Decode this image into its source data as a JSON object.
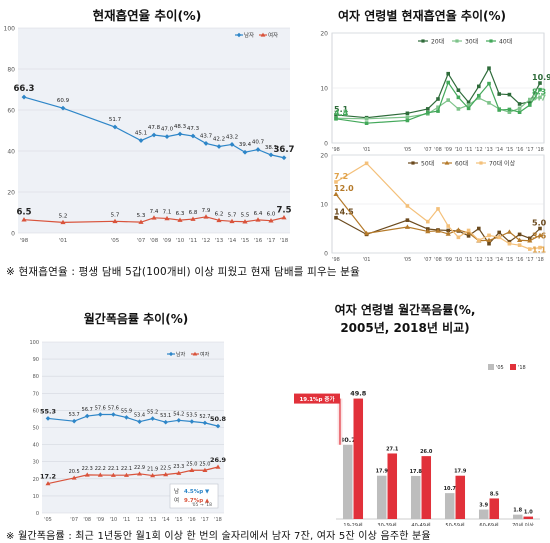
{
  "chart_data": [
    {
      "id": "p1",
      "type": "line",
      "title": "현재흡연율 추이(%)",
      "x": [
        "'98",
        "'01",
        "'05",
        "'07",
        "'08",
        "'09",
        "'10",
        "'11",
        "'12",
        "'13",
        "'14",
        "'15",
        "'16",
        "'17",
        "'18"
      ],
      "xticks": [
        "'98",
        "'01",
        "'05",
        "'07",
        "'08",
        "'09",
        "'10",
        "'11",
        "'12",
        "'13",
        "'14",
        "'15",
        "'16",
        "'17",
        "'18"
      ],
      "ylim": [
        0,
        100
      ],
      "yticks": [
        "0",
        "20",
        "40",
        "60",
        "80",
        "100"
      ],
      "series": [
        {
          "name": "남자",
          "color": "#2e86c8",
          "values": [
            66.3,
            60.9,
            51.7,
            45.1,
            47.8,
            47.0,
            48.3,
            47.3,
            43.7,
            42.2,
            43.2,
            39.4,
            40.7,
            38.1,
            36.7
          ]
        },
        {
          "name": "여자",
          "color": "#d9533b",
          "values": [
            6.5,
            5.2,
            5.7,
            5.3,
            7.4,
            7.1,
            6.3,
            6.8,
            7.9,
            6.2,
            5.7,
            5.5,
            6.4,
            6.0,
            7.5
          ]
        }
      ],
      "labels": [
        [
          "66.3",
          "60.9",
          "51.7",
          "45.1",
          "47.8",
          "47.0",
          "48.3",
          "47.3",
          "43.7",
          "42.2",
          "43.2",
          "39.4",
          "40.7",
          "38.1",
          "36.7"
        ],
        [
          "6.5",
          "5.2",
          "5.7",
          "5.3",
          "7.4",
          "7.1",
          "6.3",
          "6.8",
          "7.9",
          "6.2",
          "5.7",
          "5.5",
          "6.4",
          "6.0",
          "7.5"
        ]
      ]
    },
    {
      "id": "p2",
      "type": "line",
      "title": "여자 연령별 현재흡연율 추이(%)",
      "x": [
        "'98",
        "'01",
        "'05",
        "'07",
        "'08",
        "'09",
        "'10",
        "'11",
        "'12",
        "'13",
        "'14",
        "'15",
        "'16",
        "'17",
        "'18"
      ],
      "xticks": [
        "'98",
        "'01",
        "'05",
        "'07",
        "'08",
        "'09",
        "'10",
        "'11",
        "'12",
        "'13",
        "'14",
        "'15",
        "'16",
        "'17",
        "'18"
      ],
      "panels": [
        {
          "ylim": [
            0,
            20
          ],
          "yticks": [
            "0",
            "10",
            "20"
          ],
          "series": [
            {
              "name": "20대",
              "color": "#2e6b3a",
              "values": [
                5.1,
                4.6,
                5.4,
                6.2,
                8.0,
                12.6,
                9.6,
                7.4,
                10.3,
                13.6,
                8.9,
                8.8,
                7.1,
                7.5,
                10.9
              ]
            },
            {
              "name": "30대",
              "color": "#7ec38a",
              "values": [
                4.5,
                4.4,
                4.7,
                5.3,
                6.5,
                7.8,
                6.2,
                6.9,
                8.2,
                7.3,
                6.2,
                5.6,
                6.3,
                7.9,
                8.3
              ]
            },
            {
              "name": "40대",
              "color": "#43a85a",
              "values": [
                4.4,
                3.6,
                4.1,
                5.5,
                5.8,
                11.0,
                8.3,
                6.3,
                8.6,
                10.8,
                6.0,
                6.1,
                5.6,
                6.9,
                9.7
              ]
            }
          ],
          "value_labels": [
            "5.1",
            "4.5",
            "4.4",
            "10.9",
            "9.7",
            "8.3"
          ]
        },
        {
          "ylim": [
            0,
            20
          ],
          "yticks": [
            "0",
            "10",
            "20"
          ],
          "series": [
            {
              "name": "50대",
              "color": "#6b4a1e",
              "values": [
                7.2,
                3.8,
                6.7,
                4.9,
                4.7,
                4.6,
                4.5,
                3.5,
                5.0,
                1.9,
                4.2,
                2.3,
                3.8,
                3.0,
                5.0
              ]
            },
            {
              "name": "60대",
              "color": "#b57a2a",
              "values": [
                12.0,
                4.0,
                5.3,
                4.4,
                4.5,
                3.9,
                4.7,
                4.1,
                2.5,
                2.6,
                3.3,
                4.3,
                2.6,
                2.5,
                3.6
              ]
            },
            {
              "name": "70대 이상",
              "color": "#f4c07a",
              "values": [
                14.5,
                18.3,
                9.6,
                6.4,
                9.0,
                5.5,
                3.2,
                4.6,
                2.6,
                3.6,
                3.2,
                1.9,
                1.6,
                0.8,
                1.1
              ]
            }
          ],
          "value_labels": [
            "14.5",
            "12.0",
            "7.2",
            "5.0",
            "3.6",
            "1.1"
          ]
        }
      ]
    },
    {
      "id": "p3",
      "type": "line",
      "title": "월간폭음률 추이(%)",
      "x": [
        "'05",
        "'07",
        "'08",
        "'09",
        "'10",
        "'11",
        "'12",
        "'13",
        "'14",
        "'15",
        "'16",
        "'17",
        "'18"
      ],
      "xticks": [
        "'05",
        "'07",
        "'08",
        "'09",
        "'10",
        "'11",
        "'12",
        "'13",
        "'14",
        "'15",
        "'16",
        "'17",
        "'18"
      ],
      "ylim": [
        0,
        100
      ],
      "yticks": [
        "0",
        "10",
        "20",
        "30",
        "40",
        "50",
        "60",
        "70",
        "80",
        "90",
        "100"
      ],
      "series": [
        {
          "name": "남자",
          "color": "#2e86c8",
          "values": [
            55.3,
            53.7,
            56.7,
            57.6,
            57.6,
            55.9,
            53.4,
            55.2,
            53.1,
            54.2,
            53.5,
            52.7,
            50.8
          ]
        },
        {
          "name": "여자",
          "color": "#d9533b",
          "values": [
            17.2,
            20.5,
            22.3,
            22.2,
            22.1,
            22.1,
            22.9,
            21.9,
            22.5,
            23.3,
            25.0,
            25.0,
            26.9
          ]
        }
      ],
      "labels": [
        [
          "55.3",
          "53.7",
          "56.7",
          "57.6",
          "57.6",
          "55.9",
          "53.4",
          "55.2",
          "53.1",
          "54.2",
          "53.5",
          "52.7",
          "50.8"
        ],
        [
          "17.2",
          "20.5",
          "22.3",
          "22.2",
          "22.1",
          "22.1",
          "22.9",
          "21.9",
          "22.5",
          "23.3",
          "25.0",
          "25.0",
          "26.9"
        ]
      ],
      "annotation": {
        "period": "'05 → '18",
        "rows": [
          {
            "label": "남",
            "value": "4.5%p",
            "arrow": "▼",
            "color": "#2e86c8"
          },
          {
            "label": "여",
            "value": "9.7%p",
            "arrow": "▲",
            "color": "#d9533b"
          }
        ]
      }
    },
    {
      "id": "p4",
      "type": "bar",
      "title": "여자 연령별 월간폭음률(%,",
      "subtitle": "2005년, 2018년 비교)",
      "categories": [
        "19-29세",
        "30-39세",
        "40-49세",
        "50-59세",
        "60-69세",
        "70세 이상"
      ],
      "series": [
        {
          "name": "'05",
          "color": "#bdbdbd",
          "values": [
            30.7,
            17.9,
            17.8,
            10.7,
            3.9,
            1.8
          ]
        },
        {
          "name": "'18",
          "color": "#e1313a",
          "values": [
            49.8,
            27.1,
            26.0,
            17.9,
            8.5,
            1.0
          ]
        }
      ],
      "ylim": [
        0,
        55
      ],
      "annotation": "19.1%p 증가"
    }
  ],
  "notes": {
    "smoking": "※ 현재흡연율 : 평생 담배 5갑(100개비) 이상 피웠고 현재 담배를 피우는 분율",
    "binge": "※ 월간폭음률 : 최근 1년동안 월1회 이상 한 번의 술자리에서 남자 7잔, 여자 5잔 이상 음주한 분율"
  }
}
